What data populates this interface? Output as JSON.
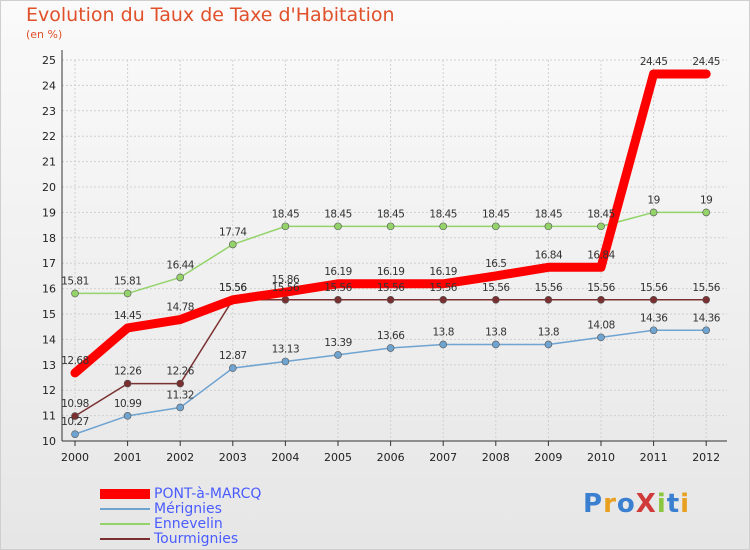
{
  "title": "Evolution du Taux de Taxe d'Habitation",
  "subtitle": "(en %)",
  "chart_data": {
    "type": "line",
    "x": [
      "2000",
      "2001",
      "2002",
      "2003",
      "2004",
      "2005",
      "2006",
      "2007",
      "2008",
      "2009",
      "2010",
      "2011",
      "2012"
    ],
    "ylim": [
      10,
      25
    ],
    "yticks": [
      "10",
      "11",
      "12",
      "13",
      "14",
      "15",
      "16",
      "17",
      "18",
      "19",
      "20",
      "21",
      "22",
      "23",
      "24",
      "25"
    ],
    "grid": true,
    "legend": "bottom-left",
    "series": [
      {
        "name": "PONT-à-MARCQ",
        "color": "#ff0000",
        "values": [
          12.68,
          14.45,
          14.78,
          15.56,
          15.86,
          16.19,
          16.19,
          16.19,
          16.5,
          16.84,
          16.84,
          24.45,
          24.45
        ],
        "labels": [
          "12.68",
          "14.45",
          "14.78",
          "15.56",
          "15.86",
          "16.19",
          "16.19",
          "16.19",
          "16.5",
          "16.84",
          "16.84",
          "24.45",
          "24.45"
        ]
      },
      {
        "name": "Mérignies",
        "color": "#6fa3d0",
        "values": [
          10.27,
          10.99,
          11.32,
          12.87,
          13.13,
          13.39,
          13.66,
          13.8,
          13.8,
          13.8,
          14.08,
          14.36,
          14.36
        ],
        "labels": [
          "10.27",
          "10.99",
          "11.32",
          "12.87",
          "13.13",
          "13.39",
          "13.66",
          "13.8",
          "13.8",
          "13.8",
          "14.08",
          "14.36",
          "14.36"
        ]
      },
      {
        "name": "Ennevelin",
        "color": "#93d36a",
        "values": [
          15.81,
          15.81,
          16.44,
          17.74,
          18.45,
          18.45,
          18.45,
          18.45,
          18.45,
          18.45,
          18.45,
          19,
          19
        ],
        "labels": [
          "15.81",
          "15.81",
          "16.44",
          "17.74",
          "18.45",
          "18.45",
          "18.45",
          "18.45",
          "18.45",
          "18.45",
          "18.45",
          "19",
          "19"
        ]
      },
      {
        "name": "Tourmignies",
        "color": "#7a3030",
        "values": [
          10.98,
          12.26,
          12.26,
          15.56,
          15.56,
          15.56,
          15.56,
          15.56,
          15.56,
          15.56,
          15.56,
          15.56,
          15.56
        ],
        "labels": [
          "10.98",
          "12.26",
          "12.26",
          "15.56",
          "15.56",
          "15.56",
          "15.56",
          "15.56",
          "15.56",
          "15.56",
          "15.56",
          "15.56",
          "15.56"
        ]
      }
    ]
  },
  "logo": {
    "text": "ProXiti",
    "letters": [
      "P",
      "r",
      "o",
      "X",
      "i",
      "t",
      "i"
    ],
    "colors": [
      "#3a7fd0",
      "#e8a020",
      "#3a7fd0",
      "#d03a3a",
      "#8cc63f",
      "#3a7fd0",
      "#e8a020"
    ]
  }
}
